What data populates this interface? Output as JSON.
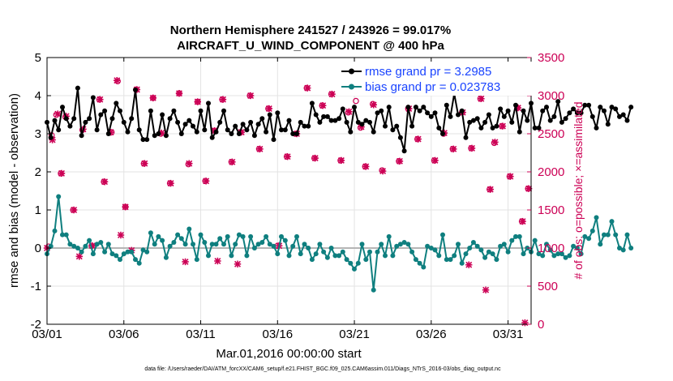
{
  "colors": {
    "rmse": "#000000",
    "bias": "#0f7f7f",
    "obs": "#cc0055",
    "legend_text": "#1a44ff",
    "zero_line": "#b5b5b5",
    "grid": "#e3e3e3",
    "axis": "#000000"
  },
  "chart_data": {
    "type": "line",
    "title": "Northern Hemisphere 241527 / 243926 = 99.017%",
    "subtitle": "AIRCRAFT_U_WIND_COMPONENT @ 400 hPa",
    "xlabel": "Mar.01,2016 00:00:00 start",
    "ylabel": "rmse and bias (model - observation)",
    "ylabel_right": "# of obs: o=possible; ×=assimilated",
    "footnote": "data file: /Users/raeder/DAI/ATM_forcXX/CAM6_setup/f.e21.FHIST_BGC.f09_025.CAM6assim.011/Diags_NTrS_2016-03/obs_diag_output.nc",
    "x_range": [
      0,
      31.5
    ],
    "ylim": [
      -2,
      5
    ],
    "ylim_right": [
      0,
      3500
    ],
    "grid": true,
    "legend_position": "top-right",
    "x_ticks": [
      {
        "value": 0,
        "label": "03/01"
      },
      {
        "value": 5,
        "label": "03/06"
      },
      {
        "value": 10,
        "label": "03/11"
      },
      {
        "value": 15,
        "label": "03/16"
      },
      {
        "value": 20,
        "label": "03/21"
      },
      {
        "value": 25,
        "label": "03/26"
      },
      {
        "value": 30,
        "label": "03/31"
      }
    ],
    "y_ticks": [
      {
        "value": -2,
        "label": "-2"
      },
      {
        "value": -1,
        "label": "-1"
      },
      {
        "value": 0,
        "label": "0"
      },
      {
        "value": 1,
        "label": "1"
      },
      {
        "value": 2,
        "label": "2"
      },
      {
        "value": 3,
        "label": "3"
      },
      {
        "value": 4,
        "label": "4"
      },
      {
        "value": 5,
        "label": "5"
      }
    ],
    "y_ticks_right": [
      {
        "value": 0,
        "label": "0"
      },
      {
        "value": 500,
        "label": "500"
      },
      {
        "value": 1000,
        "label": "1000"
      },
      {
        "value": 1500,
        "label": "1500"
      },
      {
        "value": 2000,
        "label": "2000"
      },
      {
        "value": 2500,
        "label": "2500"
      },
      {
        "value": 3000,
        "label": "3000"
      },
      {
        "value": 3500,
        "label": "3500"
      }
    ],
    "series": [
      {
        "name": "rmse grand pr = 3.2985",
        "axis": "left",
        "x_start": 0,
        "x_step": 0.25,
        "values": [
          3.3,
          2.9,
          3.35,
          3.1,
          3.7,
          3.4,
          3.2,
          3.4,
          4.2,
          2.95,
          3.3,
          3.4,
          3.95,
          3.1,
          3.5,
          3.6,
          3.0,
          3.4,
          3.8,
          3.6,
          3.3,
          3.05,
          3.4,
          4.15,
          3.1,
          2.85,
          2.85,
          3.6,
          2.95,
          3.0,
          3.5,
          2.95,
          3.4,
          3.6,
          3.3,
          3.0,
          3.25,
          3.35,
          3.2,
          3.05,
          3.6,
          3.1,
          3.8,
          2.9,
          3.05,
          3.3,
          3.6,
          3.1,
          3.0,
          3.2,
          3.0,
          3.25,
          3.1,
          3.3,
          2.95,
          3.25,
          3.4,
          3.05,
          3.5,
          2.85,
          3.55,
          3.1,
          3.1,
          3.35,
          3.0,
          3.0,
          3.3,
          3.2,
          3.2,
          3.8,
          3.5,
          3.3,
          3.45,
          3.45,
          3.35,
          3.35,
          3.4,
          3.65,
          3.3,
          3.05,
          3.7,
          3.3,
          3.25,
          3.35,
          3.3,
          3.05,
          3.55,
          3.6,
          3.2,
          3.7,
          3.1,
          3.2,
          2.9,
          2.55,
          3.7,
          3.2,
          3.7,
          3.6,
          3.7,
          3.55,
          3.45,
          3.55,
          3.15,
          3.0,
          3.75,
          3.45,
          4.05,
          3.5,
          3.6,
          2.9,
          3.3,
          3.35,
          3.4,
          3.15,
          3.3,
          3.5,
          3.15,
          3.2,
          3.65,
          3.45,
          3.6,
          3.3,
          3.75,
          3.05,
          3.6,
          3.35,
          3.8,
          3.15,
          3.15,
          3.6,
          3.7,
          3.35,
          3.45,
          3.85,
          3.3,
          3.4,
          3.55,
          3.65,
          3.55,
          3.55,
          3.75,
          3.75,
          3.45,
          3.15,
          3.7,
          3.6,
          3.25,
          3.7,
          3.65,
          3.45,
          3.5,
          3.35,
          3.7
        ]
      },
      {
        "name": "bias grand pr = 0.023783",
        "axis": "left",
        "x_start": 0,
        "x_step": 0.25,
        "values": [
          -0.15,
          0.05,
          0.45,
          1.35,
          0.35,
          0.35,
          0.1,
          0.05,
          0.0,
          -0.1,
          0.05,
          0.2,
          -0.15,
          0.1,
          0.15,
          -0.1,
          0.1,
          -0.15,
          -0.2,
          -0.3,
          -0.15,
          -0.1,
          -0.1,
          -0.3,
          -0.4,
          -0.05,
          -0.1,
          0.4,
          0.1,
          0.3,
          0.2,
          -0.25,
          0.05,
          0.15,
          0.35,
          0.25,
          0.1,
          0.5,
          0.1,
          -0.3,
          0.35,
          0.15,
          -0.2,
          0.1,
          0.1,
          0.25,
          0.1,
          0.3,
          -0.2,
          0.1,
          0.35,
          0.3,
          -0.2,
          0.3,
          0.0,
          0.1,
          0.15,
          0.3,
          0.1,
          0.05,
          -0.15,
          0.3,
          0.2,
          -0.2,
          0.05,
          0.3,
          -0.15,
          0.1,
          0.0,
          -0.3,
          -0.15,
          0.1,
          -0.1,
          -0.25,
          0.0,
          -0.2,
          -0.2,
          -0.1,
          -0.3,
          -0.4,
          -0.55,
          -0.4,
          0.1,
          -0.3,
          -0.1,
          -1.1,
          -0.1,
          0.1,
          -0.2,
          0.3,
          -0.2,
          0.05,
          0.1,
          0.15,
          0.1,
          -0.1,
          -0.3,
          -0.4,
          -0.5,
          0.05,
          0.0,
          -0.05,
          -0.2,
          0.35,
          -0.3,
          -0.3,
          -0.2,
          0.1,
          -0.4,
          -0.15,
          0.0,
          0.15,
          0.05,
          -0.05,
          -0.25,
          -0.1,
          -0.15,
          -0.3,
          0.05,
          0.1,
          -0.1,
          0.2,
          0.3,
          0.3,
          -0.15,
          0.0,
          -0.1,
          0.2,
          -0.15,
          -0.2,
          0.1,
          -0.05,
          -0.2,
          -0.15,
          -0.15,
          -0.25,
          -0.2,
          0.05,
          0.0,
          -0.15,
          0.3,
          0.25,
          0.45,
          0.8,
          0.1,
          0.35,
          0.35,
          0.7,
          0.35,
          0.0,
          -0.05,
          0.35,
          0.0
        ]
      }
    ],
    "obs_possible": {
      "axis": "right",
      "label": "possible",
      "points": [
        [
          0.1,
          1020
        ],
        [
          0.3,
          2480
        ],
        [
          0.6,
          2750
        ],
        [
          0.9,
          1980
        ],
        [
          1.2,
          2720
        ],
        [
          1.7,
          1500
        ],
        [
          2.3,
          2550
        ],
        [
          2.9,
          1030
        ],
        [
          3.4,
          2950
        ],
        [
          3.7,
          1870
        ],
        [
          4.2,
          2520
        ],
        [
          4.6,
          3190
        ],
        [
          5.1,
          1540
        ],
        [
          5.8,
          3080
        ],
        [
          6.3,
          2110
        ],
        [
          6.9,
          2970
        ],
        [
          7.4,
          2500
        ],
        [
          8.0,
          1850
        ],
        [
          8.6,
          3030
        ],
        [
          9.2,
          2100
        ],
        [
          9.8,
          2920
        ],
        [
          10.3,
          1880
        ],
        [
          10.9,
          2540
        ],
        [
          11.4,
          2950
        ],
        [
          12.0,
          2130
        ],
        [
          12.6,
          2520
        ],
        [
          13.2,
          3000
        ],
        [
          13.8,
          2300
        ],
        [
          14.4,
          2830
        ],
        [
          15.0,
          1030
        ],
        [
          15.6,
          2200
        ],
        [
          16.2,
          2500
        ],
        [
          16.9,
          3100
        ],
        [
          17.4,
          2180
        ],
        [
          17.9,
          2870
        ],
        [
          18.5,
          3020
        ],
        [
          19.1,
          2150
        ],
        [
          19.6,
          2780
        ],
        [
          20.1,
          2930
        ],
        [
          20.4,
          2580
        ],
        [
          20.7,
          2070
        ],
        [
          21.2,
          2890
        ],
        [
          21.8,
          2020
        ],
        [
          22.3,
          3090
        ],
        [
          22.9,
          2140
        ],
        [
          23.5,
          2830
        ],
        [
          24.1,
          2430
        ],
        [
          24.7,
          3180
        ],
        [
          25.2,
          2150
        ],
        [
          25.8,
          2500
        ],
        [
          26.4,
          2300
        ],
        [
          27.0,
          2780
        ],
        [
          27.6,
          2310
        ],
        [
          28.2,
          2960
        ],
        [
          28.8,
          1770
        ],
        [
          29.1,
          2380
        ],
        [
          29.6,
          2600
        ],
        [
          30.1,
          1940
        ],
        [
          30.6,
          2840
        ],
        [
          30.9,
          1350
        ],
        [
          31.3,
          1780
        ]
      ]
    },
    "obs_assimilated": {
      "axis": "right",
      "label": "assimilated",
      "points": [
        [
          0.0,
          1000
        ],
        [
          0.35,
          2420
        ],
        [
          0.7,
          2760
        ],
        [
          0.95,
          1980
        ],
        [
          1.25,
          2730
        ],
        [
          1.75,
          1500
        ],
        [
          2.1,
          890
        ],
        [
          2.35,
          2560
        ],
        [
          2.95,
          1030
        ],
        [
          3.45,
          2950
        ],
        [
          3.75,
          1870
        ],
        [
          4.15,
          2520
        ],
        [
          4.55,
          3200
        ],
        [
          4.8,
          1170
        ],
        [
          5.1,
          1540
        ],
        [
          5.5,
          970
        ],
        [
          5.85,
          3080
        ],
        [
          6.35,
          2110
        ],
        [
          6.9,
          2970
        ],
        [
          7.45,
          2510
        ],
        [
          8.05,
          1850
        ],
        [
          8.6,
          3030
        ],
        [
          9.0,
          820
        ],
        [
          9.25,
          2110
        ],
        [
          9.8,
          2920
        ],
        [
          10.35,
          1880
        ],
        [
          10.9,
          2540
        ],
        [
          11.1,
          830
        ],
        [
          11.45,
          2950
        ],
        [
          12.05,
          2130
        ],
        [
          12.4,
          790
        ],
        [
          12.65,
          2520
        ],
        [
          13.25,
          3000
        ],
        [
          13.85,
          2300
        ],
        [
          14.45,
          2830
        ],
        [
          15.1,
          1030
        ],
        [
          15.65,
          2200
        ],
        [
          16.25,
          2500
        ],
        [
          16.95,
          3100
        ],
        [
          17.45,
          2180
        ],
        [
          17.95,
          2870
        ],
        [
          18.55,
          3020
        ],
        [
          19.15,
          2150
        ],
        [
          19.65,
          2790
        ],
        [
          20.45,
          2590
        ],
        [
          20.75,
          2070
        ],
        [
          21.25,
          2880
        ],
        [
          21.85,
          2010
        ],
        [
          22.35,
          3090
        ],
        [
          22.95,
          2140
        ],
        [
          23.55,
          2830
        ],
        [
          24.15,
          2430
        ],
        [
          24.75,
          3190
        ],
        [
          25.25,
          2150
        ],
        [
          25.85,
          2510
        ],
        [
          26.45,
          2300
        ],
        [
          27.05,
          2780
        ],
        [
          27.45,
          780
        ],
        [
          27.65,
          2310
        ],
        [
          28.25,
          2960
        ],
        [
          28.55,
          450
        ],
        [
          28.85,
          1770
        ],
        [
          29.15,
          2390
        ],
        [
          29.65,
          2600
        ],
        [
          30.15,
          1940
        ],
        [
          30.65,
          2840
        ],
        [
          30.95,
          1350
        ],
        [
          31.1,
          20
        ],
        [
          31.35,
          1780
        ]
      ]
    }
  }
}
